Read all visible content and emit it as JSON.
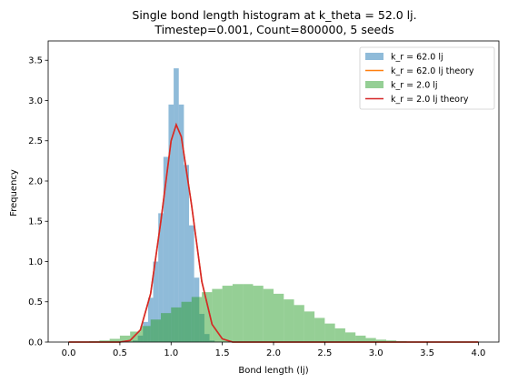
{
  "chart_data": {
    "type": "histogram",
    "title": "Single bond length histogram at k_theta = 52.0 lj.",
    "subtitle": "Timestep=0.001, Count=800000, 5 seeds",
    "xlabel": "Bond length (lj)",
    "ylabel": "Frequency",
    "xlim": [
      -0.2,
      4.2
    ],
    "ylim": [
      0,
      3.74
    ],
    "xticks": [
      "0.0",
      "0.5",
      "1.0",
      "1.5",
      "2.0",
      "2.5",
      "3.0",
      "3.5",
      "4.0"
    ],
    "yticks": [
      "0.0",
      "0.5",
      "1.0",
      "1.5",
      "2.0",
      "2.5",
      "3.0",
      "3.5"
    ],
    "legend_position": "top-right",
    "series": [
      {
        "name": "k_r = 62.0 lj",
        "kind": "histogram",
        "color": "#1f77b4",
        "alpha": 0.5,
        "bins": [
          [
            0.6,
            0.0
          ],
          [
            0.65,
            0.02
          ],
          [
            0.7,
            0.08
          ],
          [
            0.75,
            0.25
          ],
          [
            0.8,
            0.55
          ],
          [
            0.85,
            1.0
          ],
          [
            0.9,
            1.6
          ],
          [
            0.95,
            2.3
          ],
          [
            1.0,
            2.95
          ],
          [
            1.05,
            3.4
          ],
          [
            1.1,
            2.95
          ],
          [
            1.15,
            2.2
          ],
          [
            1.2,
            1.45
          ],
          [
            1.25,
            0.8
          ],
          [
            1.3,
            0.35
          ],
          [
            1.35,
            0.1
          ],
          [
            1.4,
            0.02
          ]
        ]
      },
      {
        "name": "k_r = 62.0 lj theory",
        "kind": "line",
        "color": "#ff7f0e",
        "points": [
          [
            0.0,
            0.0
          ],
          [
            0.5,
            0.0
          ],
          [
            0.6,
            0.02
          ],
          [
            0.7,
            0.15
          ],
          [
            0.8,
            0.6
          ],
          [
            0.9,
            1.5
          ],
          [
            1.0,
            2.5
          ],
          [
            1.05,
            2.7
          ],
          [
            1.1,
            2.55
          ],
          [
            1.2,
            1.7
          ],
          [
            1.3,
            0.75
          ],
          [
            1.4,
            0.22
          ],
          [
            1.5,
            0.04
          ],
          [
            1.6,
            0.0
          ],
          [
            4.0,
            0.0
          ]
        ]
      },
      {
        "name": "k_r = 2.0 lj",
        "kind": "histogram",
        "color": "#2ca02c",
        "alpha": 0.5,
        "bins": [
          [
            0.25,
            0.01
          ],
          [
            0.35,
            0.02
          ],
          [
            0.45,
            0.04
          ],
          [
            0.55,
            0.08
          ],
          [
            0.65,
            0.13
          ],
          [
            0.75,
            0.2
          ],
          [
            0.85,
            0.28
          ],
          [
            0.95,
            0.36
          ],
          [
            1.05,
            0.43
          ],
          [
            1.15,
            0.5
          ],
          [
            1.25,
            0.56
          ],
          [
            1.35,
            0.62
          ],
          [
            1.45,
            0.66
          ],
          [
            1.55,
            0.7
          ],
          [
            1.65,
            0.72
          ],
          [
            1.75,
            0.72
          ],
          [
            1.85,
            0.7
          ],
          [
            1.95,
            0.66
          ],
          [
            2.05,
            0.6
          ],
          [
            2.15,
            0.53
          ],
          [
            2.25,
            0.46
          ],
          [
            2.35,
            0.38
          ],
          [
            2.45,
            0.3
          ],
          [
            2.55,
            0.23
          ],
          [
            2.65,
            0.17
          ],
          [
            2.75,
            0.12
          ],
          [
            2.85,
            0.08
          ],
          [
            2.95,
            0.05
          ],
          [
            3.05,
            0.03
          ],
          [
            3.15,
            0.02
          ],
          [
            3.25,
            0.01
          ]
        ]
      },
      {
        "name": "k_r = 2.0 lj theory",
        "kind": "line",
        "color": "#d62728",
        "points": [
          [
            0.0,
            0.0
          ],
          [
            0.5,
            0.0
          ],
          [
            0.6,
            0.02
          ],
          [
            0.7,
            0.15
          ],
          [
            0.8,
            0.6
          ],
          [
            0.9,
            1.5
          ],
          [
            1.0,
            2.5
          ],
          [
            1.05,
            2.7
          ],
          [
            1.1,
            2.55
          ],
          [
            1.2,
            1.7
          ],
          [
            1.3,
            0.75
          ],
          [
            1.4,
            0.22
          ],
          [
            1.5,
            0.04
          ],
          [
            1.6,
            0.0
          ],
          [
            4.0,
            0.0
          ]
        ]
      }
    ]
  }
}
